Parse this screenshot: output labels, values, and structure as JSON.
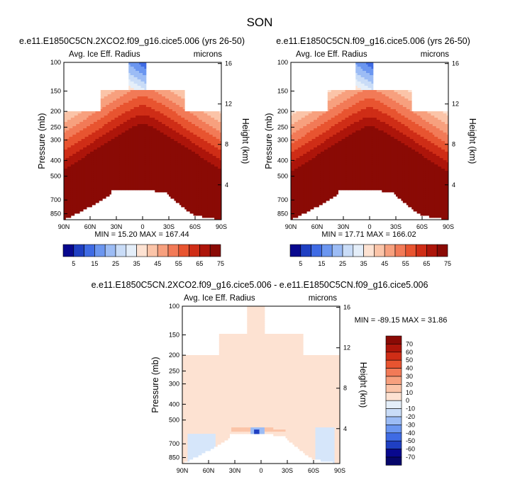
{
  "title": "SON",
  "chart_data": [
    {
      "type": "heatmap",
      "title": "e.e11.E1850C5CN.2XCO2.f09_g16.cice5.006 (yrs 26-50)",
      "subtitle_left": "Avg. Ice Eff. Radius",
      "subtitle_right": "microns",
      "ylabel": "Pressure (mb)",
      "ylabel_right": "Height (km)",
      "x_ticks": [
        "90N",
        "60N",
        "30N",
        "0",
        "30S",
        "60S",
        "90S"
      ],
      "y_ticks": [
        "100",
        "150",
        "200",
        "250",
        "300",
        "400",
        "500",
        "700",
        "850"
      ],
      "y_ticks_right": [
        "16",
        "12",
        "8",
        "4"
      ],
      "min_max": "MIN = 15.20  MAX = 167.44",
      "min": 15.2,
      "max": 167.44
    },
    {
      "type": "heatmap",
      "title": "e.e11.E1850C5CN.f09_g16.cice5.006 (yrs 26-50)",
      "subtitle_left": "Avg. Ice Eff. Radius",
      "subtitle_right": "microns",
      "ylabel": "Pressure (mb)",
      "ylabel_right": "Height (km)",
      "x_ticks": [
        "90N",
        "60N",
        "30N",
        "0",
        "30S",
        "60S",
        "90S"
      ],
      "y_ticks": [
        "100",
        "150",
        "200",
        "250",
        "300",
        "400",
        "500",
        "700",
        "850"
      ],
      "y_ticks_right": [
        "16",
        "12",
        "8",
        "4"
      ],
      "min_max": "MIN = 17.71  MAX = 166.02",
      "min": 17.71,
      "max": 166.02
    },
    {
      "type": "heatmap",
      "title": "e.e11.E1850C5CN.2XCO2.f09_g16.cice5.006 - e.e11.E1850C5CN.f09_g16.cice5.006",
      "subtitle_left": "Avg. Ice Eff. Radius",
      "subtitle_right": "microns",
      "ylabel": "Pressure (mb)",
      "ylabel_right": "Height (km)",
      "x_ticks": [
        "90N",
        "60N",
        "30N",
        "0",
        "30S",
        "60S",
        "90S"
      ],
      "y_ticks": [
        "100",
        "150",
        "200",
        "250",
        "300",
        "400",
        "500",
        "700",
        "850"
      ],
      "y_ticks_right": [
        "16",
        "12",
        "8",
        "4"
      ],
      "min_max": "MIN = -89.15  MAX = 31.86",
      "min": -89.15,
      "max": 31.86
    }
  ],
  "colorbar_top": {
    "labels": [
      "5",
      "15",
      "25",
      "35",
      "45",
      "55",
      "65",
      "75"
    ],
    "colors": [
      "#08088e",
      "#1f3fc2",
      "#3f6be4",
      "#6b96f0",
      "#9cbcf5",
      "#c9dcf7",
      "#e4eef9",
      "#fde2d2",
      "#fbc4a8",
      "#f7a07e",
      "#f27a57",
      "#e85430",
      "#cf2d16",
      "#ad150a",
      "#8a0a05"
    ]
  },
  "colorbar_diff": {
    "labels": [
      "70",
      "60",
      "50",
      "40",
      "30",
      "20",
      "10",
      "0",
      "-10",
      "-20",
      "-30",
      "-40",
      "-50",
      "-60",
      "-70"
    ],
    "colors": [
      "#8a0a05",
      "#ad150a",
      "#cf2d16",
      "#e85430",
      "#f27a57",
      "#f7a07e",
      "#fbc4a8",
      "#fde2d2",
      "#e4eef9",
      "#c9dcf7",
      "#9cbcf5",
      "#6b96f0",
      "#3f6be4",
      "#1f3fc2",
      "#08088e",
      "#06066a"
    ]
  },
  "diff_colors": {
    "pos_small": "#fde2d2",
    "neg_small": "#d6e6fa",
    "pos_mid": "#fbc4a8",
    "neg_mid": "#9cbcf5",
    "neg_strong": "#1f3fc2"
  }
}
